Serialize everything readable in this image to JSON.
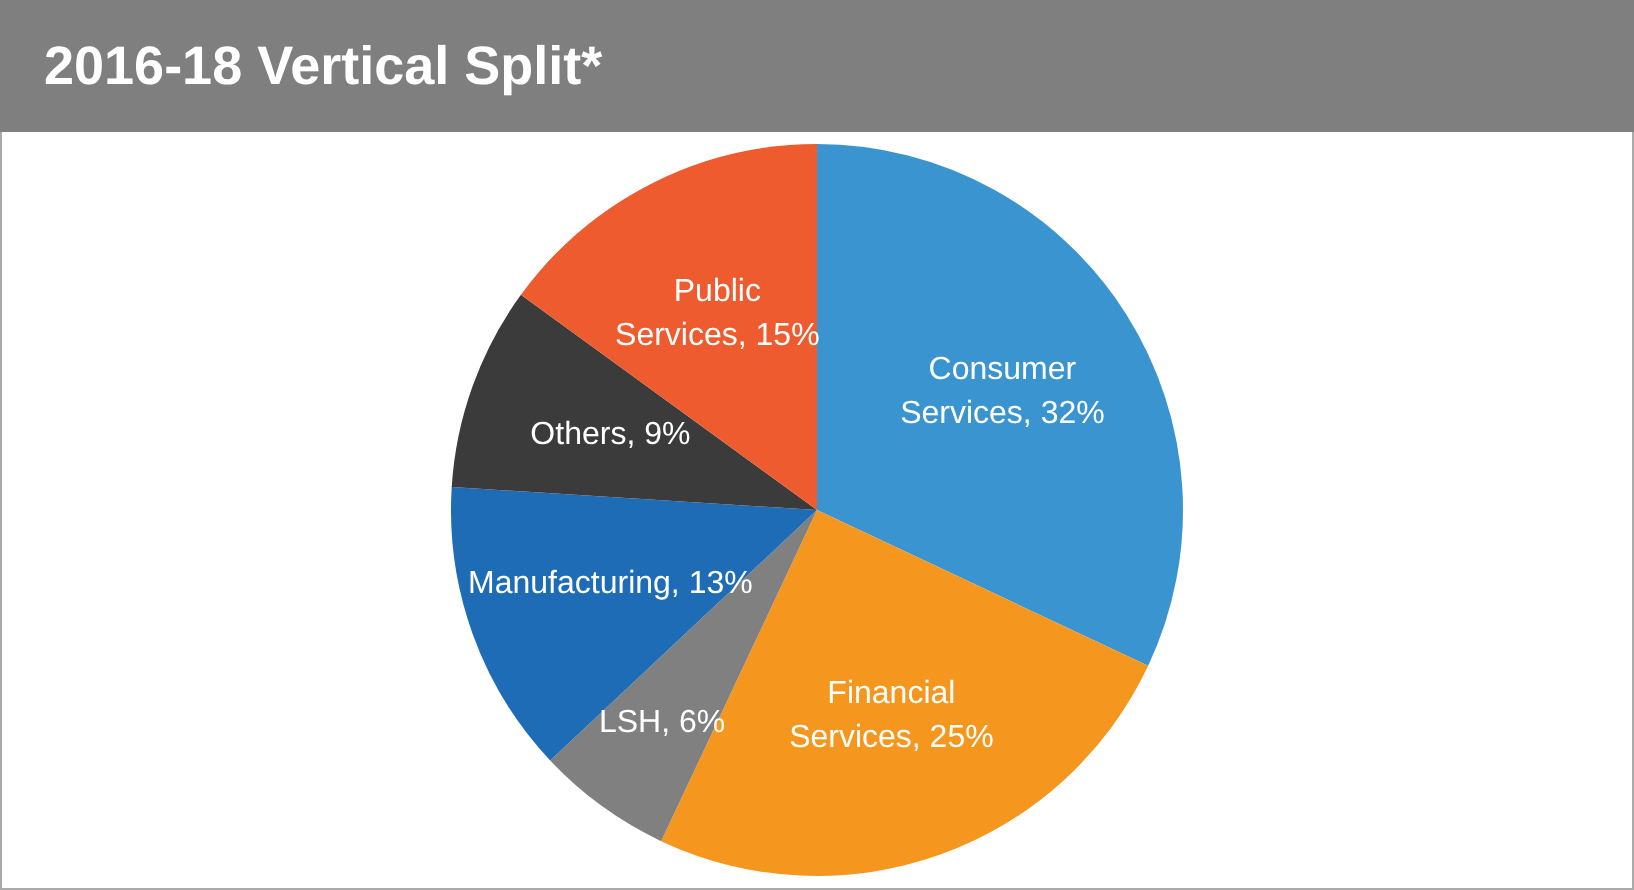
{
  "chart_data": {
    "type": "pie",
    "title": "2016-18 Vertical Split*",
    "categories": [
      "Consumer Services",
      "Financial Services",
      "LSH",
      "Manufacturing",
      "Others",
      "Public Services"
    ],
    "values": [
      32,
      25,
      6,
      13,
      9,
      15
    ],
    "value_labels": [
      "32%",
      "25%",
      "6%",
      "13%",
      "9%",
      "15%"
    ],
    "colors": [
      "#3a94d0",
      "#f5961f",
      "#808080",
      "#1f6cb6",
      "#3b3b3b",
      "#ee5b2f"
    ],
    "legend": false
  }
}
